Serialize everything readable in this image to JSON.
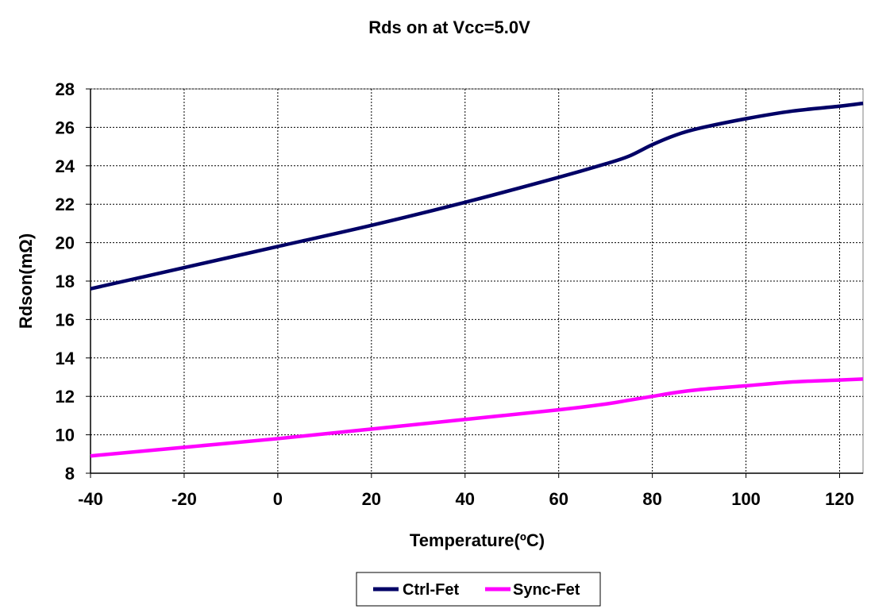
{
  "chart_data": {
    "type": "line",
    "title": "Rds on at Vcc=5.0V",
    "xlabel": "Temperature(ºC)",
    "ylabel": "Rdson(mΩ)",
    "xlim": [
      -40,
      125
    ],
    "ylim": [
      8,
      28
    ],
    "xticks": [
      -40,
      -20,
      0,
      20,
      40,
      60,
      80,
      100,
      120
    ],
    "yticks": [
      8,
      10,
      12,
      14,
      16,
      18,
      20,
      22,
      24,
      26,
      28
    ],
    "grid": true,
    "legend_position": "bottom-center",
    "series": [
      {
        "name": "Ctrl-Fet",
        "color": "#000066",
        "x": [
          -40,
          -20,
          0,
          20,
          40,
          60,
          70,
          75,
          80,
          85,
          90,
          100,
          110,
          120,
          125
        ],
        "y": [
          17.6,
          18.7,
          19.8,
          20.9,
          22.1,
          23.4,
          24.1,
          24.5,
          25.1,
          25.6,
          25.95,
          26.45,
          26.85,
          27.1,
          27.25
        ]
      },
      {
        "name": "Sync-Fet",
        "color": "#FF00FF",
        "x": [
          -40,
          -20,
          0,
          20,
          40,
          60,
          70,
          75,
          80,
          85,
          90,
          100,
          110,
          120,
          125
        ],
        "y": [
          8.9,
          9.35,
          9.8,
          10.3,
          10.8,
          11.3,
          11.6,
          11.8,
          12.0,
          12.2,
          12.35,
          12.55,
          12.75,
          12.85,
          12.9
        ]
      }
    ]
  }
}
